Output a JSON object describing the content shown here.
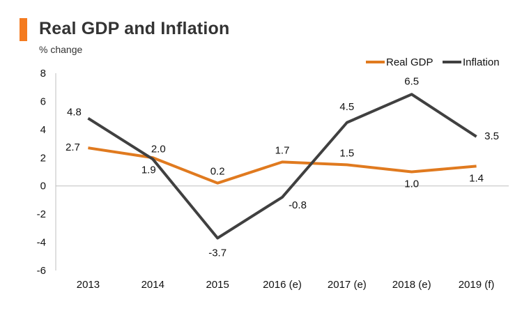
{
  "header": {
    "title": "Real GDP and Inflation",
    "subtitle": "% change"
  },
  "colors": {
    "accent": "#F47B20",
    "gdp": "#E07A1F",
    "inflation": "#404040",
    "axis": "#BFBFBF",
    "text": "#111111"
  },
  "chart_data": {
    "type": "line",
    "title": "Real GDP and Inflation",
    "ylabel": "% change",
    "xlabel": "",
    "categories": [
      "2013",
      "2014",
      "2015",
      "2016 (e)",
      "2017 (e)",
      "2018 (e)",
      "2019 (f)"
    ],
    "ylim": [
      -6,
      8
    ],
    "yticks": [
      "8",
      "6",
      "4",
      "2",
      "0",
      "-2",
      "-4",
      "-6"
    ],
    "legend_position": "top-right",
    "series": [
      {
        "name": "Real GDP",
        "values": [
          2.7,
          2.0,
          0.2,
          1.7,
          1.5,
          1.0,
          1.4
        ],
        "labels": [
          "2.7",
          "2.0",
          "0.2",
          "1.7",
          "1.5",
          "1.0",
          "1.4"
        ]
      },
      {
        "name": "Inflation",
        "values": [
          4.8,
          1.9,
          -3.7,
          -0.8,
          4.5,
          6.5,
          3.5
        ],
        "labels": [
          "4.8",
          "1.9",
          "-3.7",
          "-0.8",
          "4.5",
          "6.5",
          "3.5"
        ]
      }
    ]
  }
}
